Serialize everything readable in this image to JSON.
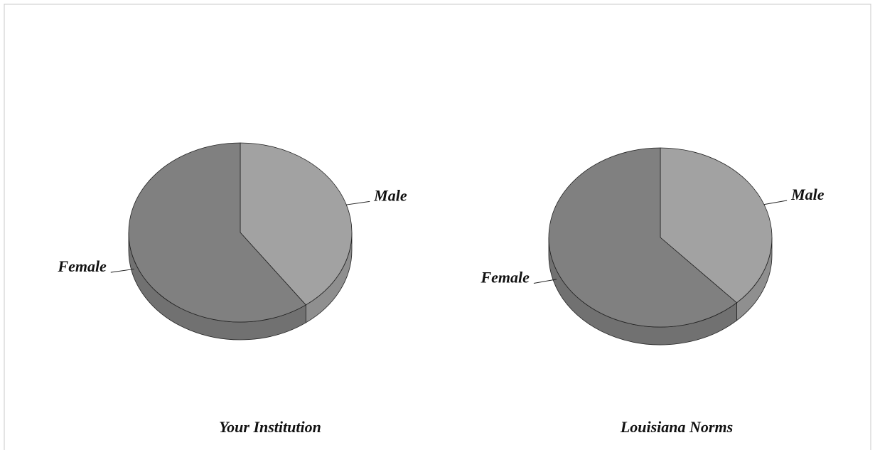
{
  "chart_data": [
    {
      "type": "pie",
      "title": "Your Institution",
      "categories": [
        "Male",
        "Female"
      ],
      "values": [
        40,
        60
      ],
      "colors": [
        "#a2a2a2",
        "#808080"
      ]
    },
    {
      "type": "pie",
      "title": "Louisiana Norms",
      "categories": [
        "Male",
        "Female"
      ],
      "values": [
        38,
        62
      ],
      "colors": [
        "#a2a2a2",
        "#808080"
      ]
    }
  ]
}
